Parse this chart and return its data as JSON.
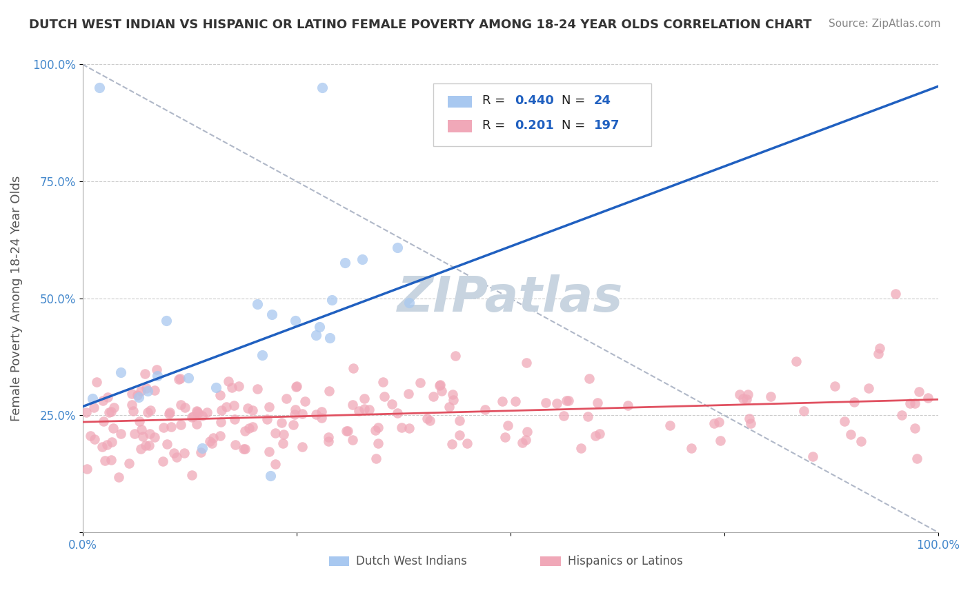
{
  "title": "DUTCH WEST INDIAN VS HISPANIC OR LATINO FEMALE POVERTY AMONG 18-24 YEAR OLDS CORRELATION CHART",
  "source": "Source: ZipAtlas.com",
  "ylabel": "Female Poverty Among 18-24 Year Olds",
  "xlim": [
    0.0,
    1.0
  ],
  "ylim": [
    0.0,
    1.0
  ],
  "blue_R": 0.44,
  "blue_N": 24,
  "pink_R": 0.201,
  "pink_N": 197,
  "blue_color": "#a8c8f0",
  "pink_color": "#f0a8b8",
  "blue_line_color": "#2060c0",
  "pink_line_color": "#e05060",
  "diagonal_color": "#b0b8c8",
  "watermark_color": "#c8d4e0",
  "legend_label_blue": "Dutch West Indians",
  "legend_label_pink": "Hispanics or Latinos"
}
